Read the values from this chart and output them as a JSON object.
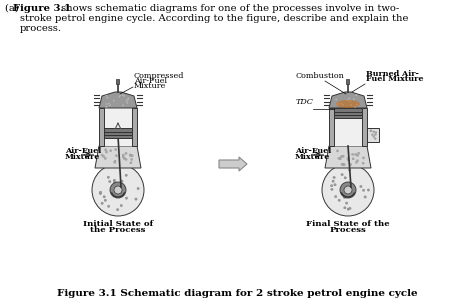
{
  "bg_color": "#ffffff",
  "title_label": "Figure 3.1 Schematic diagram for 2 stroke petrol engine cycle",
  "line1_a": "(a) ",
  "line1_bold": "Figure 3.1",
  "line1_rest": " shows schematic diagrams for one of the processes involve in two-",
  "line2": "stroke petrol engine cycle. According to the figure, describe and explain the",
  "line3": "process.",
  "left_top_labels": [
    "Compressed",
    "Air-Fuel",
    "Mixture"
  ],
  "left_side_labels": [
    "Air-Fuel",
    "Mixture"
  ],
  "left_bottom": [
    "Initial State of",
    "the Process"
  ],
  "right_top_left": "Combustion",
  "right_top_right": [
    "Burned Air-",
    "Fuel Mixture"
  ],
  "right_tdc": "TDC",
  "right_side_labels": [
    "Air-Fuel",
    "Mixture"
  ],
  "right_bottom": [
    "Final State of the",
    "Process"
  ],
  "font_family": "DejaVu Serif",
  "fontsize_body": 7.2,
  "fontsize_label": 5.8,
  "fontsize_caption": 7.5
}
